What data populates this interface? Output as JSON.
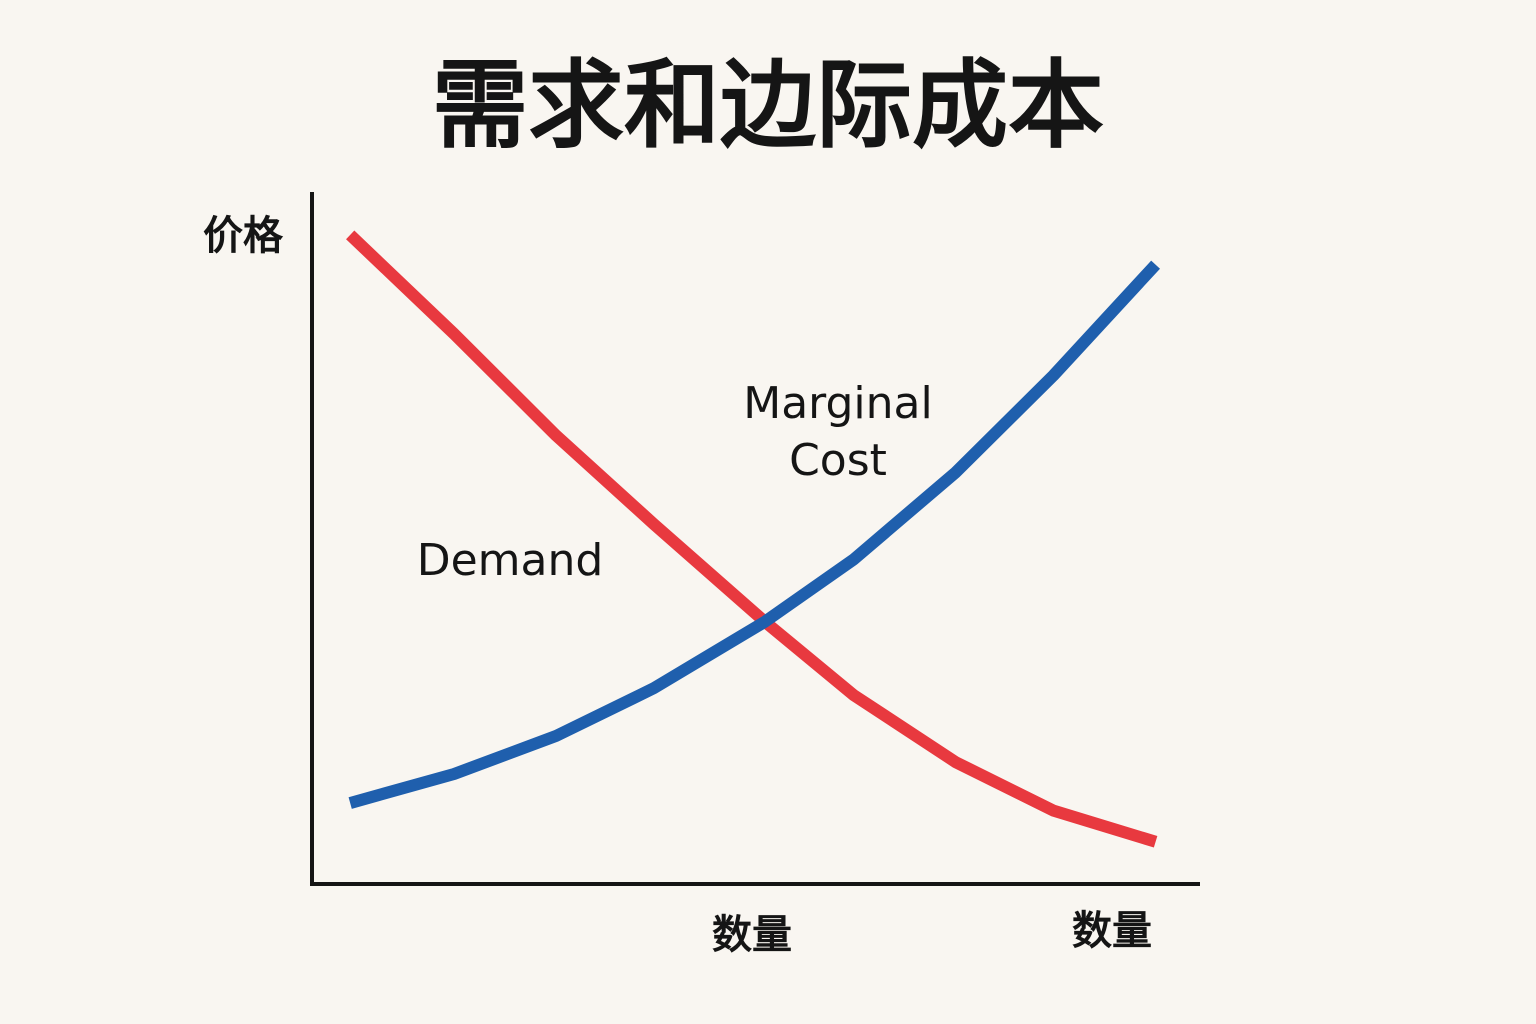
{
  "chart_data": {
    "type": "line",
    "title": "需求和边际成本",
    "ylabel": "价格",
    "xlabel": "数量",
    "annotations": [
      "数量"
    ],
    "x": [
      4.3,
      16,
      27.5,
      38.5,
      51,
      61,
      72.5,
      83.5,
      95
    ],
    "series": [
      {
        "name": "Demand",
        "color": "#e8393f",
        "values": [
          93.8,
          79.5,
          64.8,
          52,
          37.9,
          27.3,
          17.6,
          10.6,
          6.1
        ]
      },
      {
        "name": "Marginal Cost",
        "color": "#1f5fad",
        "values": [
          11.7,
          15.9,
          21.4,
          28.3,
          37.9,
          46.9,
          59.5,
          73.5,
          89.5
        ]
      }
    ],
    "xlim": [
      0,
      100
    ],
    "ylim": [
      0,
      100
    ],
    "grid": false
  }
}
